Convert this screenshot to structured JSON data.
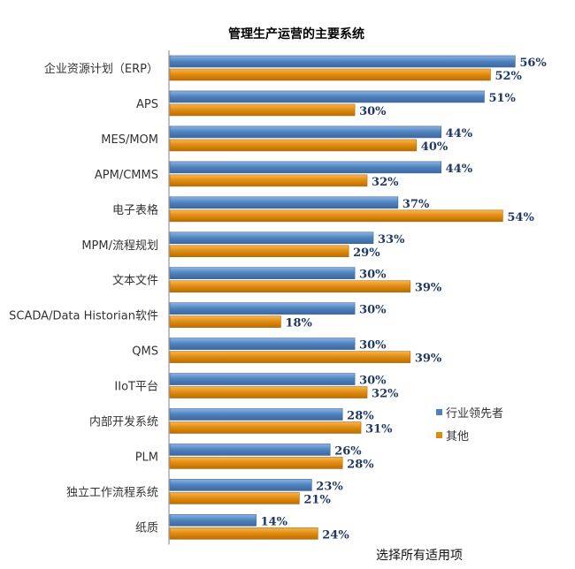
{
  "chart_data": {
    "type": "bar",
    "orientation": "horizontal",
    "title": "管理生产运营的主要系统",
    "xlabel": "选择所有适用项",
    "categories": [
      "企业资源计划（ERP）",
      "APS",
      "MES/MOM",
      "APM/CMMS",
      "电子表格",
      "MPM/流程规划",
      "文本文件",
      "SCADA/Data Historian软件",
      "QMS",
      "IIoT平台",
      "内部开发系统",
      "PLM",
      "独立工作流程系统",
      "纸质"
    ],
    "series": [
      {
        "name": "行业领先者",
        "color": "#4f81bd",
        "values": [
          56,
          51,
          44,
          44,
          37,
          33,
          30,
          30,
          30,
          30,
          28,
          26,
          23,
          14
        ]
      },
      {
        "name": "其他",
        "color": "#e08b0c",
        "values": [
          52,
          30,
          40,
          32,
          54,
          29,
          39,
          18,
          39,
          32,
          31,
          28,
          21,
          24
        ]
      }
    ],
    "value_suffix": "%",
    "xlim": [
      0,
      100
    ],
    "legend_position": "right"
  }
}
